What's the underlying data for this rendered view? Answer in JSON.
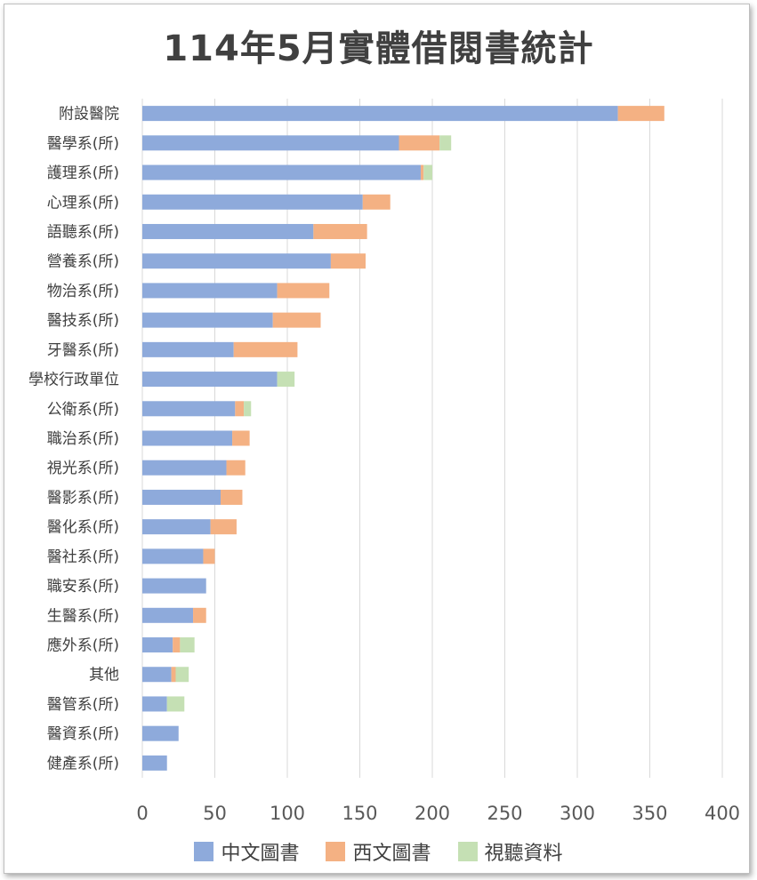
{
  "chart_data": {
    "type": "bar",
    "orientation": "horizontal",
    "stacked": true,
    "title": "114年5月實體借閱書統計",
    "categories": [
      "附設醫院",
      "醫學系(所)",
      "護理系(所)",
      "心理系(所)",
      "語聽系(所)",
      "營養系(所)",
      "物治系(所)",
      "醫技系(所)",
      "牙醫系(所)",
      "學校行政單位",
      "公衛系(所)",
      "職治系(所)",
      "視光系(所)",
      "醫影系(所)",
      "醫化系(所)",
      "醫社系(所)",
      "職安系(所)",
      "生醫系(所)",
      "應外系(所)",
      "其他",
      "醫管系(所)",
      "醫資系(所)",
      "健產系(所)"
    ],
    "series": [
      {
        "name": "中文圖書",
        "color": "#8eaadb",
        "values": [
          328,
          177,
          192,
          152,
          118,
          130,
          93,
          90,
          63,
          93,
          64,
          62,
          58,
          54,
          47,
          42,
          44,
          35,
          21,
          20,
          17,
          25,
          17
        ]
      },
      {
        "name": "西文圖書",
        "color": "#f4b183",
        "values": [
          32,
          28,
          2,
          19,
          37,
          24,
          36,
          33,
          44,
          0,
          6,
          12,
          13,
          15,
          18,
          8,
          0,
          9,
          5,
          3,
          0,
          0,
          0
        ]
      },
      {
        "name": "視聽資料",
        "color": "#c5e0b4",
        "values": [
          0,
          8,
          6,
          0,
          0,
          0,
          0,
          0,
          0,
          12,
          5,
          0,
          0,
          0,
          0,
          0,
          0,
          0,
          10,
          9,
          12,
          0,
          0
        ]
      }
    ],
    "xlim": [
      0,
      400
    ],
    "xticks": [
      0,
      50,
      100,
      150,
      200,
      250,
      300,
      350,
      400
    ],
    "grid": "vertical",
    "legend_position": "bottom"
  }
}
